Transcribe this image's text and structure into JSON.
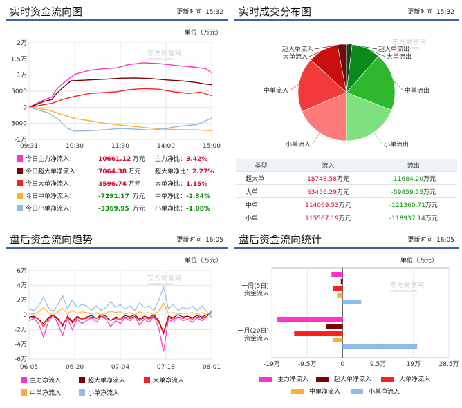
{
  "panel_realtime_flow": {
    "title": "实时资金流向图",
    "update_label": "更新时间",
    "update_time": "15:32",
    "unit": "单位（万元）",
    "watermark": "东方财富网",
    "watermark_sub": "eastmoney.com",
    "legend": [
      {
        "label": "今日主力净流入：",
        "value": "10661.12",
        "unit": "万元",
        "ratio_label": "主力净比：",
        "ratio": "3.42%",
        "color": "#ff33cc",
        "sign": "pos"
      },
      {
        "label": "今日超大单净流入：",
        "value": "7064.38",
        "unit": "万元",
        "ratio_label": "超大单净比：",
        "ratio": "2.27%",
        "color": "#7d0000",
        "sign": "pos"
      },
      {
        "label": "今日大单净流入：",
        "value": "3596.74",
        "unit": "万元",
        "ratio_label": "大单净比：",
        "ratio": "1.15%",
        "color": "#ff1f1f",
        "sign": "pos"
      },
      {
        "label": "今日中单净流入：",
        "value": "-7291.17",
        "unit": "万元",
        "ratio_label": "中单净比：",
        "ratio": "-2.34%",
        "color": "#ffb030",
        "sign": "neg"
      },
      {
        "label": "今日小单净流入：",
        "value": "-3369.95",
        "unit": "万元",
        "ratio_label": "小单净比：",
        "ratio": "-1.08%",
        "color": "#8fbbe8",
        "sign": "neg"
      }
    ]
  },
  "panel_distribution": {
    "title": "实时成交分布图",
    "update_label": "更新时间",
    "update_time": "15:32",
    "watermark": "东方财富网",
    "watermark_sub": "eastmoney.com",
    "pie_labels": {
      "super_in": "超大单流入",
      "big_in": "大单流入",
      "mid_in": "中单流入",
      "small_in": "小单流入",
      "super_out": "超大单流出",
      "big_out": "大单流出",
      "mid_out": "中单流出",
      "small_out": "小单流出"
    },
    "table_header": [
      "类型",
      "流入",
      "流出"
    ],
    "table_rows": [
      {
        "type": "超大单",
        "in": "18748.58",
        "in_unit": "万元",
        "out": "-11684.20",
        "out_unit": "万元"
      },
      {
        "type": "大单",
        "in": "63456.29",
        "in_unit": "万元",
        "out": "-59859.55",
        "out_unit": "万元"
      },
      {
        "type": "中单",
        "in": "114069.53",
        "in_unit": "万元",
        "out": "-121360.71",
        "out_unit": "万元"
      },
      {
        "type": "小单",
        "in": "115567.19",
        "in_unit": "万元",
        "out": "-118937.14",
        "out_unit": "万元"
      }
    ]
  },
  "panel_after_trend": {
    "title": "盘后资金流向趋势",
    "update_label": "更新时间",
    "update_time": "16:05",
    "unit": "单位（万元）",
    "watermark": "东方财富网",
    "watermark_sub": "eastmoney.com",
    "legend": [
      {
        "label": "主力净流入",
        "color": "#ff33cc"
      },
      {
        "label": "超大单净流入",
        "color": "#7d0000"
      },
      {
        "label": "大单净流入",
        "color": "#ff1f1f"
      },
      {
        "label": "中单净流入",
        "color": "#ffb030"
      },
      {
        "label": "小单净流入",
        "color": "#8fbbe8"
      }
    ]
  },
  "panel_after_stats": {
    "title": "盘后资金流向统计",
    "update_label": "更新时间",
    "update_time": "16:05",
    "unit": "单位（万元）",
    "watermark": "东方财富网",
    "watermark_sub": "eastmoney.com",
    "legend": [
      {
        "label": "主力净流入",
        "color": "#ff33cc"
      },
      {
        "label": "超大单净流入",
        "color": "#7d0000"
      },
      {
        "label": "大单净流入",
        "color": "#ff1f1f"
      },
      {
        "label": "中单净流入",
        "color": "#ffb030"
      },
      {
        "label": "小单净流入",
        "color": "#8fbbe8"
      }
    ]
  },
  "chart_data": [
    {
      "id": "realtime",
      "type": "line",
      "x_ticks": [
        "09:31",
        "10:30",
        "11:30",
        "14:00",
        "15:00"
      ],
      "y_ticks": [
        "2万",
        "1.5万",
        "1万",
        "5000",
        "0",
        "-5000",
        "-1万"
      ],
      "ylim": [
        -10000,
        20000
      ],
      "x_count": 240,
      "series": [
        {
          "name": "主力",
          "color": "#ff33cc",
          "points": [
            [
              0,
              0
            ],
            [
              10,
              1200
            ],
            [
              22,
              2500
            ],
            [
              30,
              3200
            ],
            [
              36,
              5500
            ],
            [
              45,
              7500
            ],
            [
              60,
              10200
            ],
            [
              80,
              11500
            ],
            [
              100,
              12000
            ],
            [
              115,
              12200
            ],
            [
              130,
              13200
            ],
            [
              150,
              13800
            ],
            [
              170,
              13600
            ],
            [
              185,
              13200
            ],
            [
              200,
              12800
            ],
            [
              215,
              12500
            ],
            [
              232,
              12000
            ],
            [
              240,
              10700
            ]
          ]
        },
        {
          "name": "超大单",
          "color": "#7d0000",
          "points": [
            [
              0,
              0
            ],
            [
              10,
              900
            ],
            [
              22,
              2000
            ],
            [
              30,
              2400
            ],
            [
              36,
              4200
            ],
            [
              45,
              6200
            ],
            [
              55,
              8200
            ],
            [
              80,
              8500
            ],
            [
              100,
              8700
            ],
            [
              120,
              9000
            ],
            [
              140,
              9100
            ],
            [
              160,
              8900
            ],
            [
              180,
              8500
            ],
            [
              200,
              8200
            ],
            [
              220,
              7700
            ],
            [
              232,
              7200
            ],
            [
              240,
              7000
            ]
          ]
        },
        {
          "name": "大单",
          "color": "#ff1f1f",
          "points": [
            [
              0,
              0
            ],
            [
              10,
              400
            ],
            [
              22,
              900
            ],
            [
              30,
              1200
            ],
            [
              36,
              1700
            ],
            [
              45,
              2500
            ],
            [
              60,
              3400
            ],
            [
              80,
              4300
            ],
            [
              100,
              4600
            ],
            [
              115,
              4800
            ],
            [
              130,
              5400
            ],
            [
              150,
              5800
            ],
            [
              170,
              5600
            ],
            [
              190,
              4800
            ],
            [
              210,
              4300
            ],
            [
              225,
              4700
            ],
            [
              240,
              3600
            ]
          ]
        },
        {
          "name": "中单",
          "color": "#ffb030",
          "points": [
            [
              0,
              0
            ],
            [
              10,
              -300
            ],
            [
              25,
              -800
            ],
            [
              40,
              -2000
            ],
            [
              60,
              -3500
            ],
            [
              80,
              -4200
            ],
            [
              100,
              -5000
            ],
            [
              120,
              -5500
            ],
            [
              140,
              -6000
            ],
            [
              160,
              -6500
            ],
            [
              180,
              -6800
            ],
            [
              200,
              -7000
            ],
            [
              220,
              -7000
            ],
            [
              240,
              -7300
            ]
          ]
        },
        {
          "name": "小单",
          "color": "#8fbbe8",
          "points": [
            [
              0,
              0
            ],
            [
              10,
              -700
            ],
            [
              25,
              -1700
            ],
            [
              40,
              -4000
            ],
            [
              50,
              -6500
            ],
            [
              60,
              -7400
            ],
            [
              80,
              -7300
            ],
            [
              100,
              -7000
            ],
            [
              120,
              -6600
            ],
            [
              140,
              -6800
            ],
            [
              160,
              -7100
            ],
            [
              180,
              -6600
            ],
            [
              200,
              -5800
            ],
            [
              220,
              -5400
            ],
            [
              240,
              -3400
            ]
          ]
        }
      ]
    },
    {
      "id": "distribution",
      "type": "pie",
      "slices": [
        {
          "label": "超大单流出",
          "value": 11684.2,
          "color": "#1a3f1a"
        },
        {
          "label": "大单流出",
          "value": 59859.55,
          "color": "#0a8a1a"
        },
        {
          "label": "中单流出",
          "value": 121360.71,
          "color": "#2eb82e"
        },
        {
          "label": "小单流出",
          "value": 118937.14,
          "color": "#7fe07f"
        },
        {
          "label": "小单流入",
          "value": 115567.19,
          "color": "#ff7a7a"
        },
        {
          "label": "中单流入",
          "value": 114069.53,
          "color": "#f23a3a"
        },
        {
          "label": "大单流入",
          "value": 63456.29,
          "color": "#c90e0e"
        },
        {
          "label": "超大单流入",
          "value": 18748.58,
          "color": "#6e0b0b"
        }
      ]
    },
    {
      "id": "after_trend",
      "type": "line",
      "x_ticks": [
        "06-05",
        "06-20",
        "07-04",
        "07-18",
        "08-01"
      ],
      "y_ticks": [
        "6万",
        "4万",
        "2万",
        "0",
        "-2万",
        "-4万",
        "-6万"
      ],
      "ylim": [
        -60000,
        60000
      ],
      "series": [
        {
          "name": "主力净流入",
          "color": "#ff33cc",
          "values": [
            -8000,
            -5000,
            -12000,
            -30000,
            -10000,
            0,
            -12000,
            -28000,
            -5000,
            -20000,
            -6000,
            -12000,
            -8000,
            -4000,
            -10000,
            -2000,
            -6000,
            -16000,
            -8000,
            -12000,
            -4000,
            -8000,
            -2000,
            -14000,
            -6000,
            -10000,
            -2000,
            -18000,
            -50000,
            -6000,
            -10000,
            -3000,
            -8000,
            -6000,
            -10000,
            -4000,
            -8000,
            -2000,
            6000
          ]
        },
        {
          "name": "超大单净流入",
          "color": "#7d0000",
          "values": [
            -3000,
            -2000,
            -6000,
            -12000,
            -4000,
            0,
            -5000,
            -15000,
            -2000,
            -9000,
            -2000,
            -6000,
            -3000,
            -1000,
            -5000,
            0,
            -2000,
            -8000,
            -3000,
            -5000,
            -1000,
            -3000,
            0,
            -6000,
            -2000,
            -4000,
            0,
            -8000,
            -24000,
            -2000,
            -4000,
            0,
            -3000,
            -2000,
            -4000,
            -1000,
            -3000,
            0,
            3000
          ]
        },
        {
          "name": "大单净流入",
          "color": "#ff1f1f",
          "values": [
            -5000,
            -3000,
            -6000,
            -16000,
            -6000,
            0,
            -7000,
            -13000,
            -3000,
            -11000,
            -4000,
            -6000,
            -5000,
            -3000,
            -5000,
            -2000,
            -4000,
            -8000,
            -5000,
            -7000,
            -3000,
            -5000,
            -2000,
            -8000,
            -4000,
            -6000,
            -2000,
            -10000,
            -26000,
            -4000,
            -6000,
            -3000,
            -5000,
            -4000,
            -6000,
            -3000,
            -5000,
            -2000,
            3000
          ]
        },
        {
          "name": "中单净流入",
          "color": "#ffb030",
          "values": [
            2000,
            1000,
            4000,
            10000,
            3000,
            0,
            4000,
            9000,
            1000,
            6000,
            2000,
            4000,
            3000,
            1000,
            3000,
            0,
            2000,
            5000,
            3000,
            4000,
            1000,
            3000,
            0,
            4000,
            2000,
            3000,
            0,
            5000,
            16000,
            2000,
            3000,
            1000,
            2000,
            2000,
            3000,
            1000,
            3000,
            0,
            -2000
          ]
        },
        {
          "name": "小单净流入",
          "color": "#8fbbe8",
          "values": [
            8000,
            6000,
            12000,
            24000,
            10000,
            4000,
            14000,
            26000,
            8000,
            20000,
            10000,
            14000,
            12000,
            6000,
            12000,
            6000,
            10000,
            18000,
            10000,
            14000,
            8000,
            12000,
            6000,
            16000,
            10000,
            12000,
            6000,
            20000,
            38000,
            8000,
            14000,
            6000,
            10000,
            8000,
            12000,
            6000,
            12000,
            4000,
            -4000
          ]
        }
      ]
    },
    {
      "id": "after_stats",
      "type": "bar",
      "orientation": "horizontal",
      "categories": [
        "一周(5日)资金流入",
        "一月(20日)资金流入"
      ],
      "x_ticks": [
        "-19万",
        "-9.5万",
        "0",
        "9.5万",
        "19万",
        "28.5万"
      ],
      "xlim": [
        -190000,
        285000
      ],
      "groups": [
        {
          "label1": "一周(5日)",
          "label2": "资金流入",
          "bars": [
            {
              "name": "主力净流入",
              "value": -30000,
              "color": "#ff33cc"
            },
            {
              "name": "超大单净流入",
              "value": -5000,
              "color": "#7d0000"
            },
            {
              "name": "大单净流入",
              "value": -25000,
              "color": "#ff1f1f"
            },
            {
              "name": "中单净流入",
              "value": -15000,
              "color": "#ffb030"
            },
            {
              "name": "小单净流入",
              "value": 50000,
              "color": "#8fbbe8"
            }
          ]
        },
        {
          "label1": "一月(20日)",
          "label2": "资金流入",
          "bars": [
            {
              "name": "主力净流入",
              "value": -175000,
              "color": "#ff33cc"
            },
            {
              "name": "超大单净流入",
              "value": -45000,
              "color": "#7d0000"
            },
            {
              "name": "大单净流入",
              "value": -130000,
              "color": "#ff1f1f"
            },
            {
              "name": "中单净流入",
              "value": -25000,
              "color": "#ffb030"
            },
            {
              "name": "小单净流入",
              "value": 200000,
              "color": "#8fbbe8"
            }
          ]
        }
      ]
    }
  ]
}
